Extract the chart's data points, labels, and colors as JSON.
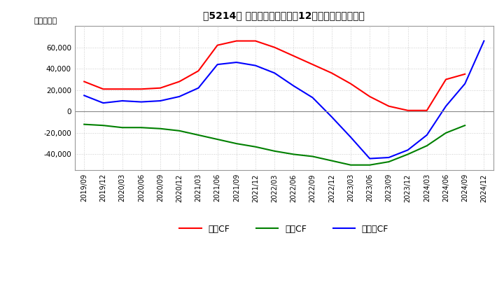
{
  "title_str": "【5214】 キャッシュフローの12か月移動合計の推移",
  "ylabel": "（百万円）",
  "ylim": [
    -55000,
    80000
  ],
  "yticks": [
    -40000,
    -20000,
    0,
    20000,
    40000,
    60000
  ],
  "background_color": "#ffffff",
  "grid_color": "#cccccc",
  "dates": [
    "2019/09",
    "2019/12",
    "2020/03",
    "2020/06",
    "2020/09",
    "2020/12",
    "2021/03",
    "2021/06",
    "2021/09",
    "2021/12",
    "2022/03",
    "2022/06",
    "2022/09",
    "2022/12",
    "2023/03",
    "2023/06",
    "2023/09",
    "2023/12",
    "2024/03",
    "2024/06",
    "2024/09",
    "2024/12"
  ],
  "operating_cf": [
    28000,
    21000,
    21000,
    21000,
    22000,
    28000,
    38000,
    62000,
    66000,
    66000,
    60000,
    52000,
    44000,
    36000,
    26000,
    14000,
    5000,
    1000,
    1000,
    30000,
    35000,
    null
  ],
  "investing_cf": [
    -12000,
    -13000,
    -15000,
    -15000,
    -16000,
    -18000,
    -22000,
    -26000,
    -30000,
    -33000,
    -37000,
    -40000,
    -42000,
    -46000,
    -50000,
    -50000,
    -47000,
    -40000,
    -32000,
    -20000,
    -13000,
    null
  ],
  "free_cf": [
    15000,
    8000,
    10000,
    9000,
    10000,
    14000,
    22000,
    44000,
    46000,
    43000,
    36000,
    24000,
    13000,
    -5000,
    -24000,
    -44000,
    -43000,
    -36000,
    -22000,
    5000,
    26000,
    66000
  ],
  "line_colors": {
    "operating": "#ff0000",
    "investing": "#008000",
    "free": "#0000ff"
  },
  "legend_labels": [
    "営業CF",
    "投資CF",
    "フリーCF"
  ]
}
